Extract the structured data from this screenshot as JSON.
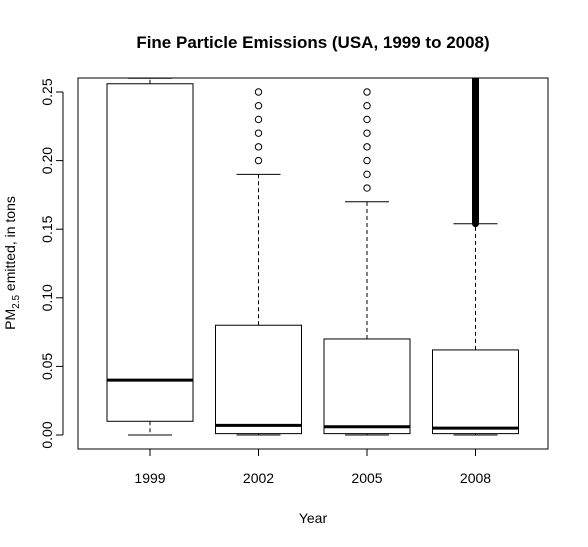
{
  "chart_data": {
    "type": "boxplot",
    "title": "Fine Particle Emissions (USA, 1999 to 2008)",
    "xlabel": "Year",
    "ylabel": {
      "prefix": "PM",
      "subscript": "2.5",
      "suffix": " emitted, in tons"
    },
    "ylim": [
      0,
      0.26
    ],
    "y_ticks": [
      0.0,
      0.05,
      0.1,
      0.15,
      0.2,
      0.25
    ],
    "y_tick_labels": [
      "0.00",
      "0.05",
      "0.10",
      "0.15",
      "0.20",
      "0.25"
    ],
    "categories": [
      "1999",
      "2002",
      "2005",
      "2008"
    ],
    "boxes": [
      {
        "category": "1999",
        "whisker_low": 0.0,
        "q1": 0.01,
        "median": 0.04,
        "q3": 0.256,
        "whisker_high": 0.26,
        "outliers": [],
        "dense_outliers": false
      },
      {
        "category": "2002",
        "whisker_low": 0.0,
        "q1": 0.001,
        "median": 0.007,
        "q3": 0.08,
        "whisker_high": 0.19,
        "outliers": [
          0.2,
          0.21,
          0.22,
          0.23,
          0.24,
          0.25
        ],
        "dense_outliers": false
      },
      {
        "category": "2005",
        "whisker_low": 0.0,
        "q1": 0.001,
        "median": 0.006,
        "q3": 0.07,
        "whisker_high": 0.17,
        "outliers": [
          0.18,
          0.19,
          0.2,
          0.21,
          0.22,
          0.23,
          0.24,
          0.25
        ],
        "dense_outliers": false
      },
      {
        "category": "2008",
        "whisker_low": 0.0,
        "q1": 0.001,
        "median": 0.005,
        "q3": 0.062,
        "whisker_high": 0.154,
        "outliers": [
          0.154,
          0.26
        ],
        "dense_outliers": true
      }
    ],
    "grid": false,
    "legend": "none"
  }
}
